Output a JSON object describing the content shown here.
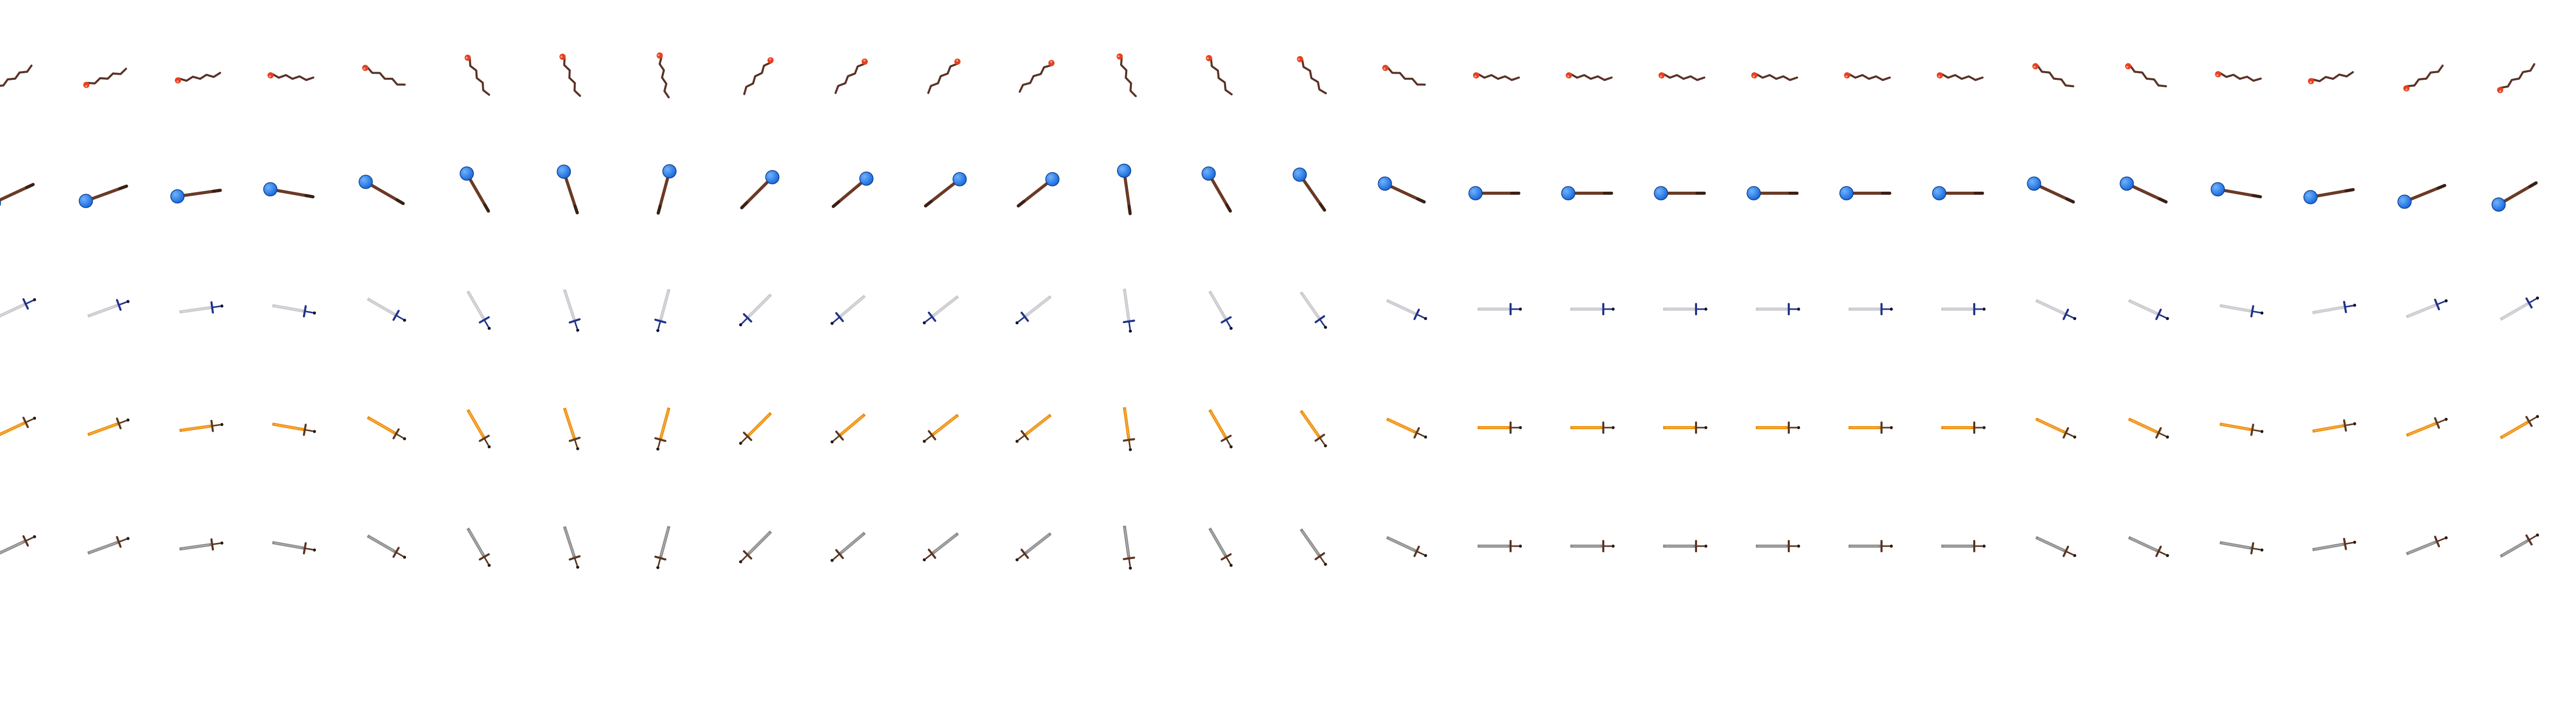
{
  "sheet": {
    "background": "#ffffff",
    "rows": [
      {
        "name": "torch",
        "colors": {
          "handle": "#5a3326",
          "tip": "#e8401f",
          "accent": "#f3a08a"
        },
        "angles_deg": [
          -150,
          -160,
          -172,
          175,
          155,
          118,
          112,
          100,
          50,
          45,
          45,
          40,
          110,
          120,
          125,
          155,
          175,
          175,
          175,
          175,
          175,
          175,
          150,
          150,
          172,
          -170,
          -150,
          -145
        ]
      },
      {
        "name": "mace",
        "colors": {
          "handle": "#6b3a26",
          "head": "#1565d8",
          "head_highlight": "#6fb3ff"
        },
        "angles_deg": [
          -155,
          -160,
          -172,
          170,
          150,
          120,
          108,
          75,
          45,
          40,
          38,
          38,
          98,
          120,
          125,
          155,
          180,
          180,
          180,
          180,
          180,
          180,
          155,
          155,
          170,
          -170,
          -158,
          -150
        ]
      },
      {
        "name": "silver-dagger",
        "colors": {
          "blade": "#c9c9cf",
          "hilt": "#22338a",
          "pommel": "#0c1230"
        },
        "angles_deg": [
          -155,
          -160,
          -172,
          170,
          150,
          120,
          108,
          75,
          45,
          40,
          38,
          38,
          98,
          120,
          125,
          155,
          180,
          180,
          180,
          180,
          180,
          180,
          155,
          155,
          170,
          -170,
          -158,
          -150
        ]
      },
      {
        "name": "golden-dagger",
        "colors": {
          "blade": "#f0900e",
          "hilt": "#5c3a20",
          "pommel": "#2b1a10"
        },
        "angles_deg": [
          -155,
          -160,
          -172,
          170,
          150,
          120,
          108,
          75,
          45,
          40,
          38,
          38,
          98,
          120,
          125,
          155,
          180,
          180,
          180,
          180,
          180,
          180,
          155,
          155,
          170,
          -170,
          -158,
          -150
        ]
      },
      {
        "name": "iron-dagger",
        "colors": {
          "blade": "#8d8d8d",
          "hilt": "#5b3422",
          "pommel": "#2b1a10"
        },
        "angles_deg": [
          -155,
          -160,
          -172,
          170,
          150,
          120,
          108,
          75,
          45,
          40,
          38,
          38,
          98,
          120,
          125,
          155,
          180,
          180,
          180,
          180,
          180,
          180,
          155,
          155,
          170,
          -170,
          -158,
          -150
        ]
      }
    ]
  }
}
